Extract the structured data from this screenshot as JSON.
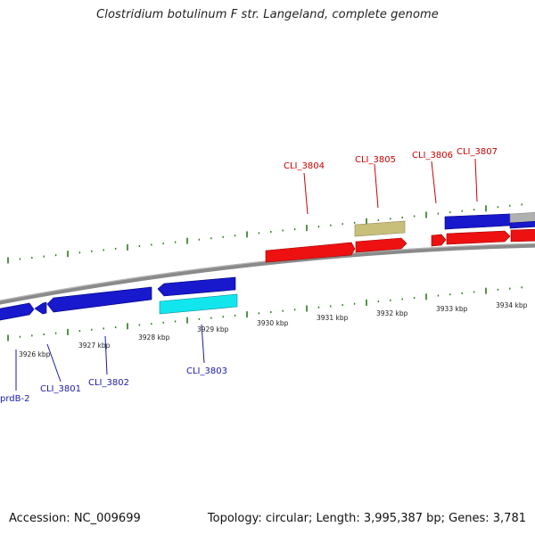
{
  "title": "Clostridium botulinum F str. Langeland, complete genome",
  "footer": {
    "accession": "Accession: NC_009699",
    "summary": "Topology: circular; Length: 3,995,387 bp; Genes: 3,781"
  },
  "colors": {
    "gene_forward_red": "#ee1111",
    "gene_reverse_blue": "#1818cc",
    "gene_cyan": "#11e6ee",
    "gene_khaki": "#c8bf7a",
    "tick_green": "#2a7a1a",
    "backbone_gray": "#8a8a8a",
    "label_red": "#cc0000",
    "label_blue": "#1a1aaa"
  },
  "scale_labels": [
    "3926 kbp",
    "3927 kbp",
    "3928 kbp",
    "3929 kbp",
    "3930 kbp",
    "3931 kbp",
    "3932 kbp",
    "3933 kbp",
    "3934 kbp"
  ],
  "gene_labels_top": [
    "CLI_3804",
    "CLI_3805",
    "CLI_3806",
    "CLI_3807"
  ],
  "gene_labels_bottom": [
    "prdB-2",
    "CLI_3801",
    "CLI_3802",
    "CLI_3803"
  ]
}
